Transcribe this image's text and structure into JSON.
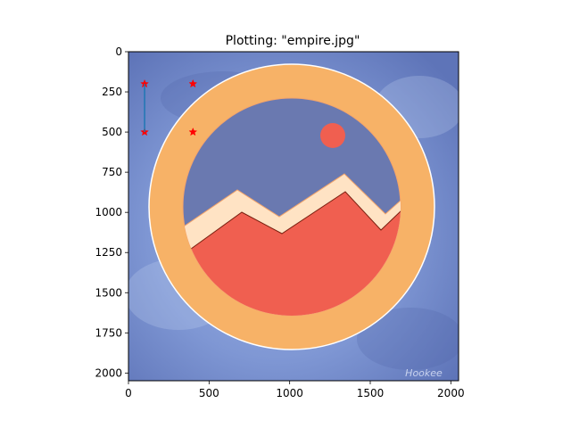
{
  "window": {
    "title": "Plotting: \"empire.jpg\""
  },
  "image": {
    "filename": "empire.jpg",
    "watermark_text": "Hookee",
    "colors": {
      "background": "#6f86c8",
      "ring": "#f7b267",
      "sky": "#6a79b0",
      "snow": "#ffe3c4",
      "mountain": "#f05f50",
      "sun": "#f05f50",
      "outline": "#ffffff"
    }
  },
  "chart_data": {
    "type": "scatter",
    "title": "Plotting: \"empire.jpg\"",
    "xlabel": "",
    "ylabel": "",
    "xlim": [
      0,
      2048
    ],
    "ylim": [
      2048,
      0
    ],
    "grid": false,
    "x_ticks": [
      0,
      500,
      1000,
      1500,
      2000
    ],
    "y_ticks": [
      0,
      250,
      500,
      750,
      1000,
      1250,
      1500,
      1750,
      2000
    ],
    "series": [
      {
        "marker": "star",
        "color": "#ff0000",
        "points": [
          {
            "x": 100,
            "y": 200
          },
          {
            "x": 400,
            "y": 200
          },
          {
            "x": 100,
            "y": 500
          },
          {
            "x": 400,
            "y": 500
          }
        ]
      },
      {
        "marker": "line",
        "color": "#1f77b4",
        "points": [
          {
            "x": 100,
            "y": 200
          },
          {
            "x": 100,
            "y": 500
          }
        ]
      }
    ]
  }
}
